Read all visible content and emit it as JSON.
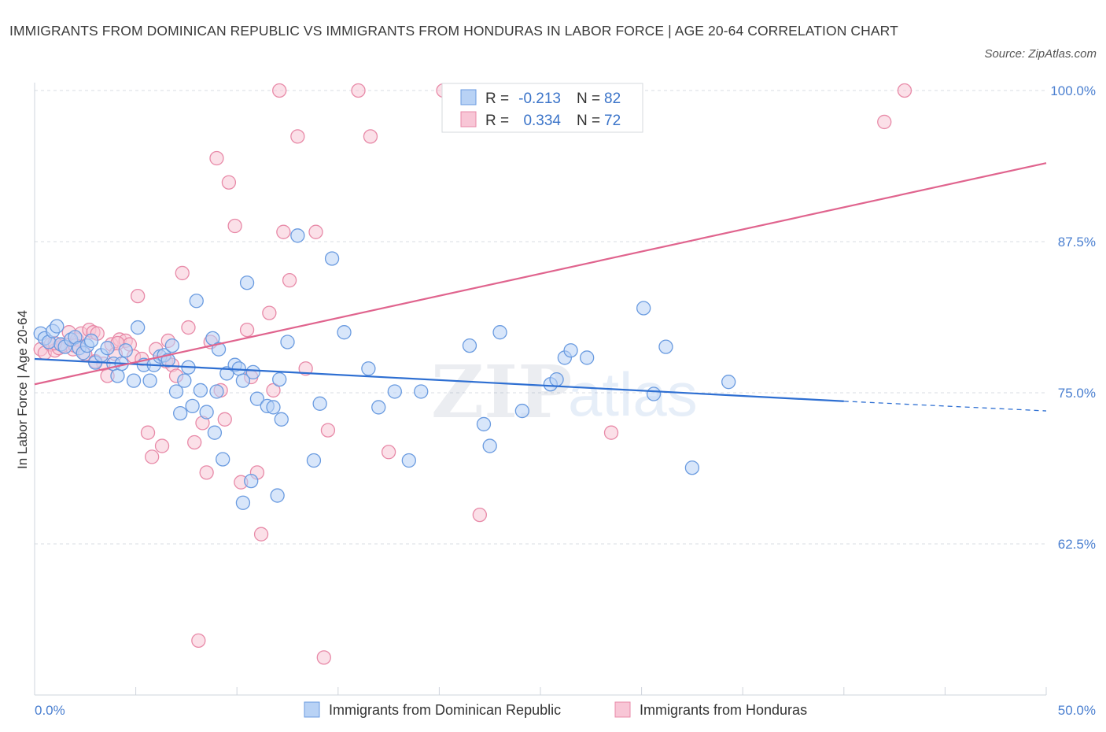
{
  "title": "IMMIGRANTS FROM DOMINICAN REPUBLIC VS IMMIGRANTS FROM HONDURAS IN LABOR FORCE | AGE 20-64 CORRELATION CHART",
  "source": "Source: ZipAtlas.com",
  "watermark": {
    "zip": "ZIP",
    "atlas": "atlas"
  },
  "colors": {
    "blue_fill": "#b8d2f5",
    "blue_stroke": "#6a9be0",
    "blue_line": "#2e6fd2",
    "pink_fill": "#f8c6d6",
    "pink_stroke": "#e88aa8",
    "pink_line": "#e0648e",
    "grid": "#d8dce3",
    "tick_label": "#4a7fd0"
  },
  "legend_top": {
    "rows": [
      {
        "r_label": "R =",
        "r_value": "-0.213",
        "n_label": "N =",
        "n_value": "82"
      },
      {
        "r_label": "R =",
        "r_value": "0.334",
        "n_label": "N =",
        "n_value": "72"
      }
    ]
  },
  "chart_data": {
    "type": "scatter",
    "title": "IMMIGRANTS FROM DOMINICAN REPUBLIC VS IMMIGRANTS FROM HONDURAS IN LABOR FORCE | AGE 20-64 CORRELATION CHART",
    "xlabel": "",
    "ylabel": "In Labor Force | Age 20-64",
    "xlim": [
      0,
      50
    ],
    "ylim": [
      50,
      100
    ],
    "x_tick_labels": [
      "0.0%",
      "50.0%"
    ],
    "y_ticks": [
      62.5,
      75.0,
      87.5,
      100.0
    ],
    "y_tick_labels": [
      "62.5%",
      "75.0%",
      "87.5%",
      "100.0%"
    ],
    "grid": true,
    "legend_position": "top-center",
    "series": [
      {
        "name": "Immigrants from Dominican Republic",
        "r": -0.213,
        "n": 82,
        "trend": {
          "x0": 0,
          "y0": 77.8,
          "x1": 40,
          "y1": 74.3,
          "dashed_to_x": 50,
          "dashed_to_y": 73.5
        },
        "points": [
          [
            0.3,
            79.9
          ],
          [
            0.5,
            79.5
          ],
          [
            0.7,
            79.2
          ],
          [
            0.9,
            80.1
          ],
          [
            1.1,
            80.5
          ],
          [
            1.3,
            79.0
          ],
          [
            1.5,
            78.8
          ],
          [
            1.8,
            79.4
          ],
          [
            2.0,
            79.6
          ],
          [
            2.2,
            78.7
          ],
          [
            2.4,
            78.3
          ],
          [
            2.6,
            78.9
          ],
          [
            2.8,
            79.3
          ],
          [
            3.0,
            77.5
          ],
          [
            3.3,
            78.1
          ],
          [
            3.6,
            78.7
          ],
          [
            3.9,
            77.4
          ],
          [
            4.1,
            76.4
          ],
          [
            4.3,
            77.4
          ],
          [
            4.5,
            78.5
          ],
          [
            4.9,
            76.0
          ],
          [
            5.1,
            80.4
          ],
          [
            5.4,
            77.3
          ],
          [
            5.7,
            76.0
          ],
          [
            5.9,
            77.3
          ],
          [
            6.2,
            78.0
          ],
          [
            6.4,
            78.1
          ],
          [
            6.6,
            77.7
          ],
          [
            6.8,
            78.9
          ],
          [
            7.0,
            75.1
          ],
          [
            7.2,
            73.3
          ],
          [
            7.4,
            76.0
          ],
          [
            7.6,
            77.1
          ],
          [
            7.8,
            73.9
          ],
          [
            8.0,
            82.6
          ],
          [
            8.2,
            75.2
          ],
          [
            8.5,
            73.4
          ],
          [
            8.8,
            79.5
          ],
          [
            8.9,
            71.7
          ],
          [
            9.1,
            78.6
          ],
          [
            9.3,
            69.5
          ],
          [
            9.5,
            76.6
          ],
          [
            9.9,
            77.3
          ],
          [
            10.1,
            77.0
          ],
          [
            10.3,
            76.0
          ],
          [
            10.5,
            84.1
          ],
          [
            10.8,
            76.7
          ],
          [
            11.0,
            74.5
          ],
          [
            11.5,
            73.9
          ],
          [
            11.8,
            73.8
          ],
          [
            12.2,
            72.8
          ],
          [
            12.0,
            66.5
          ],
          [
            12.1,
            76.1
          ],
          [
            12.5,
            79.2
          ],
          [
            13.0,
            88.0
          ],
          [
            13.8,
            69.4
          ],
          [
            14.1,
            74.1
          ],
          [
            14.7,
            86.1
          ],
          [
            15.3,
            80.0
          ],
          [
            16.5,
            77.0
          ],
          [
            17.0,
            73.8
          ],
          [
            17.8,
            75.1
          ],
          [
            18.5,
            69.4
          ],
          [
            19.1,
            75.1
          ],
          [
            21.5,
            78.9
          ],
          [
            22.2,
            72.4
          ],
          [
            22.5,
            70.6
          ],
          [
            23.0,
            80.0
          ],
          [
            24.1,
            73.5
          ],
          [
            25.5,
            75.7
          ],
          [
            25.8,
            76.1
          ],
          [
            26.2,
            77.9
          ],
          [
            26.5,
            78.5
          ],
          [
            27.3,
            77.9
          ],
          [
            30.1,
            82.0
          ],
          [
            30.6,
            74.9
          ],
          [
            31.2,
            78.8
          ],
          [
            32.5,
            68.8
          ],
          [
            34.3,
            75.9
          ],
          [
            10.7,
            67.7
          ],
          [
            10.3,
            65.9
          ],
          [
            9.0,
            75.1
          ]
        ]
      },
      {
        "name": "Immigrants from Honduras",
        "r": 0.334,
        "n": 72,
        "trend": {
          "x0": 0,
          "y0": 75.7,
          "x1": 50,
          "y1": 94.0
        },
        "points": [
          [
            0.3,
            78.6
          ],
          [
            0.5,
            78.3
          ],
          [
            0.8,
            79.0
          ],
          [
            1.0,
            78.5
          ],
          [
            1.2,
            78.7
          ],
          [
            1.4,
            78.9
          ],
          [
            1.7,
            80.0
          ],
          [
            1.9,
            78.6
          ],
          [
            2.1,
            79.4
          ],
          [
            2.3,
            79.9
          ],
          [
            2.5,
            78.2
          ],
          [
            2.7,
            80.2
          ],
          [
            2.9,
            80.0
          ],
          [
            3.1,
            79.9
          ],
          [
            3.4,
            77.4
          ],
          [
            3.6,
            76.4
          ],
          [
            3.8,
            79.0
          ],
          [
            4.0,
            78.2
          ],
          [
            4.2,
            79.4
          ],
          [
            4.5,
            79.3
          ],
          [
            4.7,
            79.0
          ],
          [
            4.9,
            78.0
          ],
          [
            5.1,
            83.0
          ],
          [
            5.3,
            77.8
          ],
          [
            5.6,
            71.7
          ],
          [
            5.8,
            69.7
          ],
          [
            6.0,
            78.6
          ],
          [
            6.3,
            70.6
          ],
          [
            6.5,
            77.6
          ],
          [
            6.8,
            77.3
          ],
          [
            7.0,
            76.4
          ],
          [
            7.3,
            84.9
          ],
          [
            7.6,
            80.4
          ],
          [
            7.9,
            70.9
          ],
          [
            8.1,
            54.5
          ],
          [
            8.3,
            72.5
          ],
          [
            8.5,
            68.4
          ],
          [
            8.7,
            79.2
          ],
          [
            9.0,
            94.4
          ],
          [
            9.2,
            75.2
          ],
          [
            9.4,
            72.8
          ],
          [
            9.6,
            92.4
          ],
          [
            9.9,
            88.8
          ],
          [
            10.2,
            67.6
          ],
          [
            10.5,
            80.2
          ],
          [
            10.7,
            76.3
          ],
          [
            11.0,
            68.4
          ],
          [
            11.2,
            63.3
          ],
          [
            11.6,
            81.6
          ],
          [
            11.8,
            75.2
          ],
          [
            12.1,
            100.0
          ],
          [
            12.3,
            88.3
          ],
          [
            12.6,
            84.3
          ],
          [
            13.0,
            96.2
          ],
          [
            13.4,
            77.0
          ],
          [
            13.9,
            88.3
          ],
          [
            14.5,
            71.9
          ],
          [
            14.3,
            53.1
          ],
          [
            16.0,
            100.0
          ],
          [
            16.6,
            96.2
          ],
          [
            17.5,
            70.1
          ],
          [
            20.2,
            100.0
          ],
          [
            22.0,
            64.9
          ],
          [
            25.5,
            98.5
          ],
          [
            28.5,
            71.7
          ],
          [
            42.0,
            97.4
          ],
          [
            43.0,
            100.0
          ],
          [
            4.1,
            79.1
          ],
          [
            3.0,
            77.6
          ],
          [
            2.0,
            78.9
          ],
          [
            6.6,
            79.3
          ],
          [
            1.0,
            79.1
          ]
        ]
      }
    ]
  }
}
